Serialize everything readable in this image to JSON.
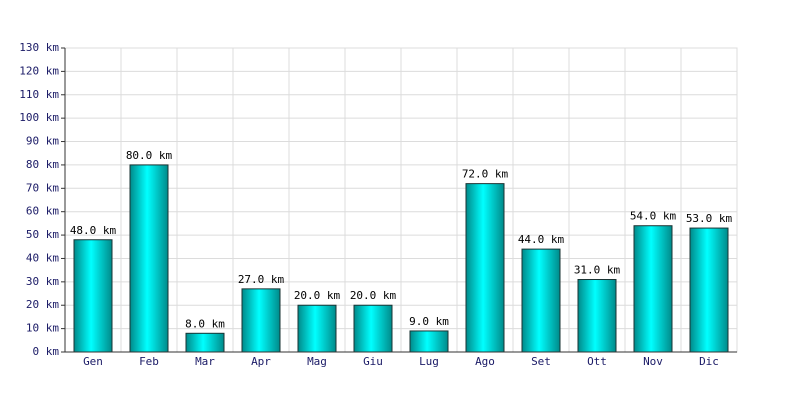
{
  "chart_data": {
    "type": "bar",
    "categories": [
      "Gen",
      "Feb",
      "Mar",
      "Apr",
      "Mag",
      "Giu",
      "Lug",
      "Ago",
      "Set",
      "Ott",
      "Nov",
      "Dic"
    ],
    "values": [
      48,
      80,
      8,
      27,
      20,
      20,
      9,
      72,
      44,
      31,
      54,
      53
    ],
    "value_labels": [
      "48.0 km",
      "80.0 km",
      "8.0 km",
      "27.0 km",
      "20.0 km",
      "20.0 km",
      "9.0 km",
      "72.0 km",
      "44.0 km",
      "31.0 km",
      "54.0 km",
      "53.0 km"
    ],
    "color": "#00c8c8",
    "ylim": [
      0,
      130
    ],
    "yticks": [
      {
        "value": 0,
        "label": "0 km"
      },
      {
        "value": 10,
        "label": "10 km"
      },
      {
        "value": 20,
        "label": "20 km"
      },
      {
        "value": 30,
        "label": "30 km"
      },
      {
        "value": 40,
        "label": "40 km"
      },
      {
        "value": 50,
        "label": "50 km"
      },
      {
        "value": 60,
        "label": "60 km"
      },
      {
        "value": 70,
        "label": "70 km"
      },
      {
        "value": 80,
        "label": "80 km"
      },
      {
        "value": 90,
        "label": "90 km"
      },
      {
        "value": 100,
        "label": "100 km"
      },
      {
        "value": 110,
        "label": "110 km"
      },
      {
        "value": 120,
        "label": "120 km"
      },
      {
        "value": 130,
        "label": "130 km"
      }
    ],
    "grid": true
  }
}
